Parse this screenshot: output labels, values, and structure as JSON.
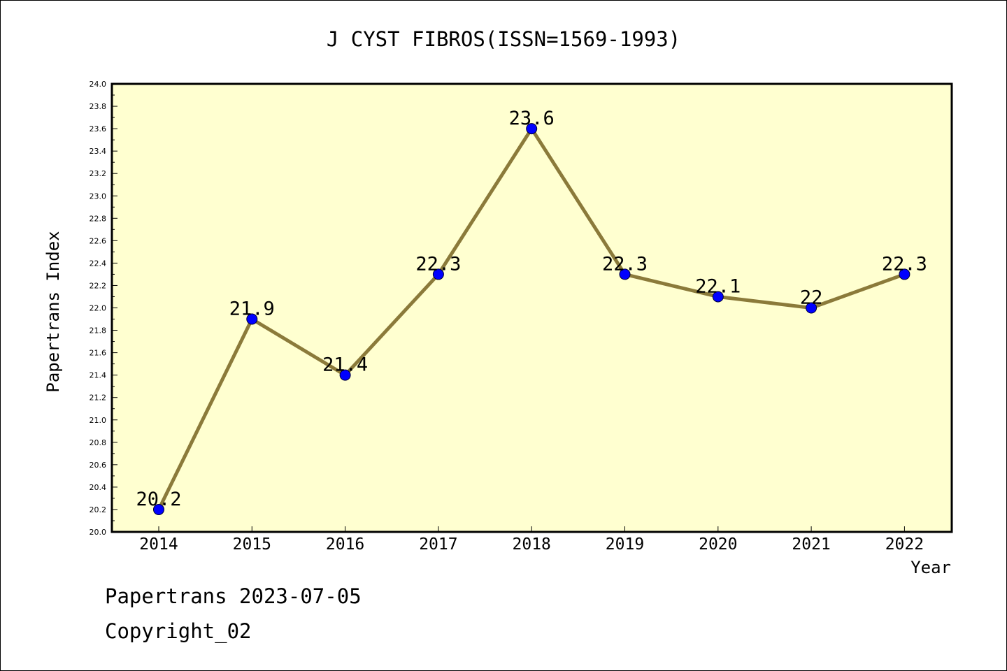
{
  "chart_data": {
    "type": "line",
    "title": "J CYST FIBROS(ISSN=1569-1993)",
    "xlabel": "Year",
    "ylabel": "Papertrans Index",
    "categories": [
      "2014",
      "2015",
      "2016",
      "2017",
      "2018",
      "2019",
      "2020",
      "2021",
      "2022"
    ],
    "series": [
      {
        "values": [
          20.2,
          21.9,
          21.4,
          22.3,
          23.6,
          22.3,
          22.1,
          22.0,
          22.3
        ],
        "data_labels": [
          "20.2",
          "21.9",
          "21.4",
          "22.3",
          "23.6",
          "22.3",
          "22.1",
          "22",
          "22.3"
        ]
      }
    ],
    "ylim": [
      20.0,
      24.0
    ],
    "yticks": [
      "20.0",
      "20.2",
      "20.4",
      "20.6",
      "20.8",
      "21.0",
      "21.2",
      "21.4",
      "21.6",
      "21.8",
      "22.0",
      "22.2",
      "22.4",
      "22.6",
      "22.8",
      "23.0",
      "23.2",
      "23.4",
      "23.6",
      "23.8",
      "24.0"
    ],
    "grid": false,
    "colors": {
      "plot_background": "#ffffd0",
      "line": "#8b7a3a",
      "marker": "#0000ff"
    }
  },
  "footer": {
    "line1": "Papertrans 2023-07-05",
    "line2": "Copyright_02"
  }
}
